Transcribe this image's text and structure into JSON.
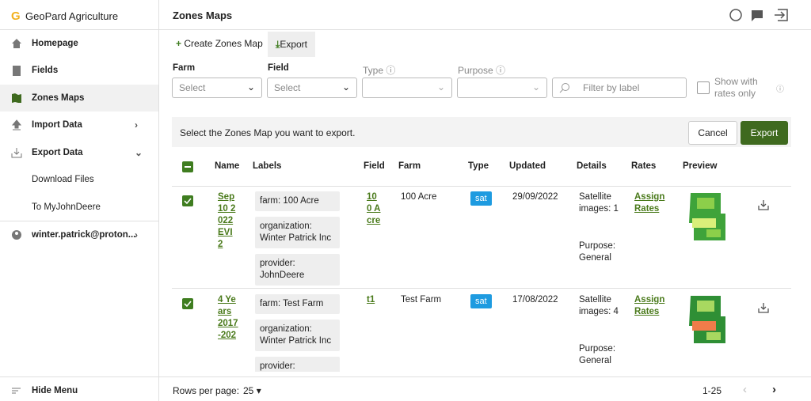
{
  "sidebar": {
    "brand": "GeoPard Agriculture",
    "items": [
      "Homepage",
      "Fields",
      "Zones Maps",
      "Import Data",
      "Export Data"
    ],
    "subitems": [
      "Download Files",
      "To MyJohnDeere"
    ],
    "user": "winter.patrick@proton...",
    "hide": "Hide Menu"
  },
  "header": {
    "title": "Zones Maps"
  },
  "toolbar": {
    "create": "Create Zones Map",
    "export": "Export"
  },
  "filters": {
    "farm": {
      "label": "Farm",
      "placeholder": "Select"
    },
    "field": {
      "label": "Field",
      "placeholder": "Select"
    },
    "type": {
      "label": "Type"
    },
    "purpose": {
      "label": "Purpose"
    },
    "search": "Filter by label",
    "rates": "Show with rates only"
  },
  "banner": {
    "text": "Select the Zones Map you want to export.",
    "cancel": "Cancel",
    "export": "Export"
  },
  "table": {
    "columns": [
      "Name",
      "Labels",
      "Field",
      "Farm",
      "Type",
      "Updated",
      "Details",
      "Rates",
      "Preview"
    ],
    "rows": [
      {
        "name": "Sep 10 2022 EVI 2",
        "labels": [
          "farm: 100 Acre",
          "organization: Winter Patrick Inc",
          "provider: JohnDeere"
        ],
        "field": "100 Acre",
        "farm": "100 Acre",
        "type": "sat",
        "updated": "29/09/2022",
        "details": "Satellite images: 1",
        "purpose": "Purpose: General",
        "rates": "Assign Rates"
      },
      {
        "name": "4 Years 2017-202",
        "labels": [
          "farm: Test Farm",
          "organization: Winter Patrick Inc",
          "provider: JohnDeere"
        ],
        "field": "t1",
        "farm": "Test Farm",
        "type": "sat",
        "updated": "17/08/2022",
        "details": "Satellite images: 4",
        "purpose": "Purpose: General",
        "rates": "Assign Rates"
      }
    ]
  },
  "footer": {
    "rows_label": "Rows per page:",
    "rows_value": "25",
    "range": "1-25"
  }
}
